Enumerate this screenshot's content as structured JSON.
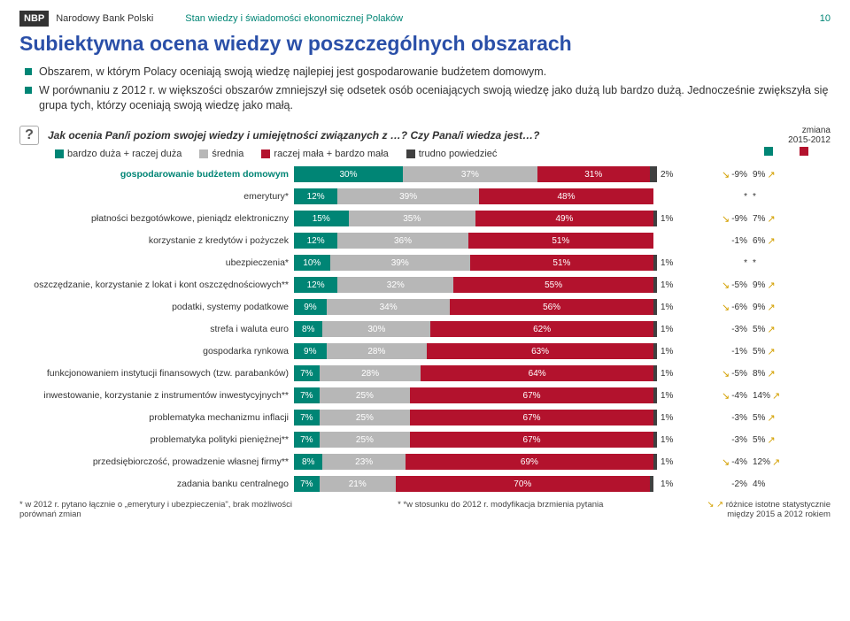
{
  "header": {
    "logo": "NBP",
    "bank": "Narodowy Bank Polski",
    "doc_title": "Stan wiedzy i świadomości ekonomicznej Polaków",
    "page_num": "10"
  },
  "main_title": "Subiektywna ocena wiedzy w poszczególnych obszarach",
  "bullets": [
    "Obszarem, w którym Polacy oceniają swoją wiedzę najlepiej jest gospodarowanie budżetem domowym.",
    "W porównaniu z 2012 r.  w większości obszarów  zmniejszył się odsetek osób oceniających swoją wiedzę jako dużą lub bardzo dużą. Jednocześnie zwiększyła się grupa tych, którzy oceniają swoją wiedzę jako małą."
  ],
  "question": "Jak ocenia Pan/i poziom swojej wiedzy i umiejętności związanych z …? Czy Pana/i wiedza jest…?",
  "legend": {
    "items": [
      {
        "label": "bardzo duża + raczej duża",
        "color": "#008575"
      },
      {
        "label": "średnia",
        "color": "#b7b7b7"
      },
      {
        "label": "raczej mała + bardzo mała",
        "color": "#b3122d"
      },
      {
        "label": "trudno powiedzieć",
        "color": "#404040"
      }
    ],
    "zmiana_label": "zmiana\n2015-2012"
  },
  "colors": {
    "seg1": "#008575",
    "seg2": "#b7b7b7",
    "seg3": "#b3122d",
    "seg4": "#404040",
    "arrow_down": "#c00000",
    "arrow_up": "#00a650",
    "sig": "#d4a000"
  },
  "rows": [
    {
      "label": "gospodarowanie budżetem domowym",
      "v": [
        30,
        37,
        31,
        2
      ],
      "label_color": "#008575",
      "label_bold": true,
      "c1": "-9%",
      "a1": "down",
      "s1": true,
      "c2": "9%",
      "a2": "up",
      "s2": true
    },
    {
      "label": "emerytury*",
      "v": [
        12,
        39,
        48,
        0
      ],
      "c1": "*",
      "c2": "*"
    },
    {
      "label": "płatności bezgotówkowe, pieniądz elektroniczny",
      "v": [
        15,
        35,
        49,
        1
      ],
      "c1": "-9%",
      "a1": "down",
      "s1": true,
      "c2": "7%",
      "a2": "up",
      "s2": true
    },
    {
      "label": "korzystanie z kredytów i pożyczek",
      "v": [
        12,
        36,
        51,
        0
      ],
      "c1": "-1%",
      "c2": "6%",
      "a2": "up",
      "s2": true
    },
    {
      "label": "ubezpieczenia*",
      "v": [
        10,
        39,
        51,
        1
      ],
      "c1": "*",
      "c2": "*"
    },
    {
      "label": "oszczędzanie, korzystanie z lokat i kont oszczędnościowych**",
      "v": [
        12,
        32,
        55,
        1
      ],
      "c1": "-5%",
      "a1": "down",
      "s1": true,
      "c2": "9%",
      "a2": "up",
      "s2": true
    },
    {
      "label": "podatki, systemy podatkowe",
      "v": [
        9,
        34,
        56,
        1
      ],
      "c1": "-6%",
      "a1": "down",
      "s1": true,
      "c2": "9%",
      "a2": "up",
      "s2": true
    },
    {
      "label": "strefa i waluta euro",
      "v": [
        8,
        30,
        62,
        1
      ],
      "c1": "-3%",
      "c2": "5%",
      "a2": "up",
      "s2": true
    },
    {
      "label": "gospodarka rynkowa",
      "v": [
        9,
        28,
        63,
        1
      ],
      "c1": "-1%",
      "c2": "5%",
      "a2": "up",
      "s2": true
    },
    {
      "label": "funkcjonowaniem instytucji finansowych (tzw. parabanków)",
      "v": [
        7,
        28,
        64,
        1
      ],
      "c1": "-5%",
      "a1": "down",
      "s1": true,
      "c2": "8%",
      "a2": "up",
      "s2": true
    },
    {
      "label": "inwestowanie, korzystanie z instrumentów inwestycyjnych**",
      "v": [
        7,
        25,
        67,
        1
      ],
      "c1": "-4%",
      "a1": "down",
      "s1": true,
      "c2": "14%",
      "a2": "up",
      "s2": true
    },
    {
      "label": "problematyka mechanizmu inflacji",
      "v": [
        7,
        25,
        67,
        1
      ],
      "c1": "-3%",
      "c2": "5%",
      "a2": "up",
      "s2": true
    },
    {
      "label": "problematyka polityki pieniężnej**",
      "v": [
        7,
        25,
        67,
        1
      ],
      "c1": "-3%",
      "c2": "5%",
      "a2": "up",
      "s2": true
    },
    {
      "label": "przedsiębiorczość, prowadzenie własnej firmy**",
      "v": [
        8,
        23,
        69,
        1
      ],
      "c1": "-4%",
      "a1": "down",
      "s1": true,
      "c2": "12%",
      "a2": "up",
      "s2": true
    },
    {
      "label": "zadania banku centralnego",
      "v": [
        7,
        21,
        70,
        1
      ],
      "c1": "-2%",
      "c2": "4%"
    }
  ],
  "footnotes": {
    "left": "* w 2012 r. pytano łącznie o „emerytury i ubezpieczenia\", brak możliwości porównań zmian",
    "mid": "* *w stosunku do 2012 r. modyfikacja brzmienia pytania",
    "right": "różnice istotne statystycznie\nmiędzy 2015 a 2012 rokiem"
  }
}
